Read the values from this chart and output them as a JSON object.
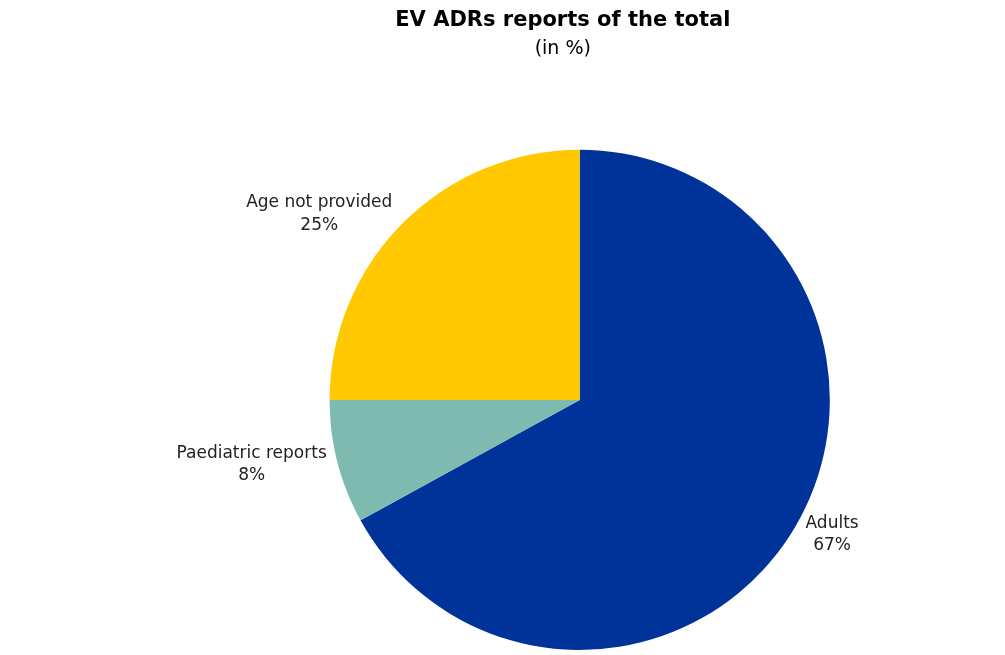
{
  "chart_data": {
    "type": "pie",
    "title": "EV ADRs reports of the total",
    "subtitle": "(in %)",
    "categories": [
      "Adults",
      "Paediatric reports",
      "Age not provided"
    ],
    "values": [
      67,
      8,
      25
    ],
    "value_labels": [
      "67%",
      "8%",
      "25%"
    ],
    "colors": [
      "#003399",
      "#7fbab0",
      "#ffc800"
    ],
    "legend": false
  }
}
